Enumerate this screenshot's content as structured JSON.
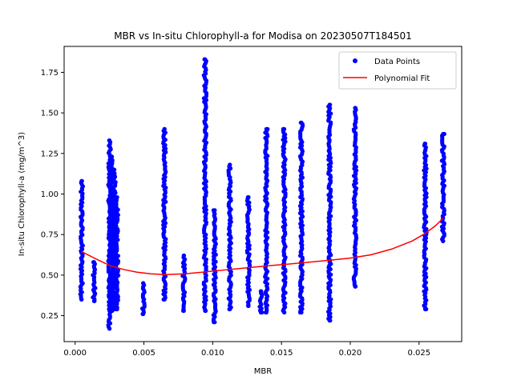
{
  "chart_data": {
    "type": "scatter",
    "title": "MBR vs In-situ Chlorophyll-a for Modisa on 20230507T184501",
    "xlabel": "MBR",
    "ylabel": "In-situ Chlorophyll-a (mg/m^3)",
    "xlim": [
      -0.0008,
      0.0281
    ],
    "ylim": [
      0.09,
      1.91
    ],
    "xticks": [
      0.0,
      0.005,
      0.01,
      0.015,
      0.02,
      0.025
    ],
    "xtick_labels": [
      "0.000",
      "0.005",
      "0.010",
      "0.015",
      "0.020",
      "0.025"
    ],
    "yticks": [
      0.25,
      0.5,
      0.75,
      1.0,
      1.25,
      1.5,
      1.75
    ],
    "ytick_labels": [
      "0.25",
      "0.50",
      "0.75",
      "1.00",
      "1.25",
      "1.50",
      "1.75"
    ],
    "grid": false,
    "legend_position": "top-right",
    "series": [
      {
        "name": "Data Points",
        "kind": "scatter",
        "color": "#0000ff",
        "columns": [
          {
            "x": 0.00047,
            "ymin": 0.35,
            "ymax": 1.08
          },
          {
            "x": 0.00138,
            "ymin": 0.34,
            "ymax": 0.58
          },
          {
            "x": 0.0025,
            "ymin": 0.17,
            "ymax": 1.33
          },
          {
            "x": 0.00267,
            "ymin": 0.28,
            "ymax": 1.23
          },
          {
            "x": 0.00285,
            "ymin": 0.29,
            "ymax": 1.15
          },
          {
            "x": 0.00305,
            "ymin": 0.29,
            "ymax": 0.98
          },
          {
            "x": 0.00495,
            "ymin": 0.26,
            "ymax": 0.45
          },
          {
            "x": 0.0065,
            "ymin": 0.35,
            "ymax": 1.4
          },
          {
            "x": 0.0079,
            "ymin": 0.28,
            "ymax": 0.62
          },
          {
            "x": 0.00945,
            "ymin": 0.28,
            "ymax": 1.83
          },
          {
            "x": 0.01015,
            "ymin": 0.21,
            "ymax": 0.9
          },
          {
            "x": 0.01125,
            "ymin": 0.29,
            "ymax": 1.18
          },
          {
            "x": 0.0126,
            "ymin": 0.31,
            "ymax": 0.98
          },
          {
            "x": 0.0135,
            "ymin": 0.27,
            "ymax": 0.4
          },
          {
            "x": 0.0139,
            "ymin": 0.27,
            "ymax": 1.4
          },
          {
            "x": 0.0152,
            "ymin": 0.27,
            "ymax": 1.4
          },
          {
            "x": 0.01645,
            "ymin": 0.27,
            "ymax": 1.44
          },
          {
            "x": 0.0185,
            "ymin": 0.22,
            "ymax": 1.55
          },
          {
            "x": 0.02035,
            "ymin": 0.43,
            "ymax": 1.53
          },
          {
            "x": 0.02545,
            "ymin": 0.29,
            "ymax": 1.31
          },
          {
            "x": 0.02675,
            "ymin": 0.71,
            "ymax": 1.37
          }
        ]
      },
      {
        "name": "Polynomial Fit",
        "kind": "line",
        "color": "#ff0000",
        "points": [
          [
            0.00047,
            0.645
          ],
          [
            0.0015,
            0.6
          ],
          [
            0.0025,
            0.56
          ],
          [
            0.0035,
            0.535
          ],
          [
            0.0045,
            0.518
          ],
          [
            0.0055,
            0.508
          ],
          [
            0.0065,
            0.503
          ],
          [
            0.008,
            0.508
          ],
          [
            0.0095,
            0.52
          ],
          [
            0.011,
            0.533
          ],
          [
            0.0125,
            0.545
          ],
          [
            0.014,
            0.557
          ],
          [
            0.0155,
            0.568
          ],
          [
            0.017,
            0.58
          ],
          [
            0.0185,
            0.592
          ],
          [
            0.02,
            0.605
          ],
          [
            0.0215,
            0.625
          ],
          [
            0.023,
            0.66
          ],
          [
            0.0245,
            0.71
          ],
          [
            0.0255,
            0.76
          ],
          [
            0.0262,
            0.805
          ],
          [
            0.02675,
            0.85
          ]
        ]
      }
    ]
  }
}
